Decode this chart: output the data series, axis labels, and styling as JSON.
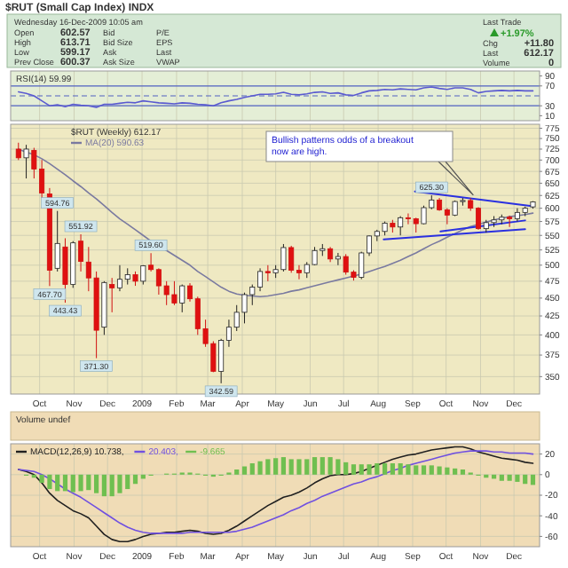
{
  "chart_data": [
    {
      "type": "other",
      "title": "$RUT (Small Cap Index) INDX",
      "annotations": [
        "Wednesday 16-Dec-2009 10:05 am",
        "Open",
        "602.57",
        "High",
        "613.71",
        "Low",
        "599.17",
        "Prev Close",
        "600.37",
        "Bid",
        "Bid Size",
        "Ask",
        "Ask Size",
        "P/E",
        "EPS",
        "Last",
        "VWAP",
        "Last Trade",
        "+1.97%",
        "Chg",
        "+11.80",
        "Last",
        "612.17",
        "Volume",
        "0"
      ]
    },
    {
      "type": "line",
      "title": "RSI(14) 59.99",
      "xlim": [
        "2008-09-05",
        "2009-12-24"
      ],
      "ylim": [
        0,
        100
      ],
      "yticks": [
        10,
        30,
        70,
        90
      ],
      "tick_labels": "y",
      "grid": "x",
      "xticks": [
        {
          "value": "2008-10-01",
          "label": null
        },
        {
          "value": "2008-11-01",
          "label": null
        },
        {
          "value": "2008-12-01",
          "label": null
        },
        {
          "value": "2009-01-01",
          "label": null
        },
        {
          "value": "2009-02-01",
          "label": null
        },
        {
          "value": "2009-03-01",
          "label": null
        },
        {
          "value": "2009-04-01",
          "label": null
        },
        {
          "value": "2009-05-01",
          "label": null
        },
        {
          "value": "2009-06-01",
          "label": null
        },
        {
          "value": "2009-07-01",
          "label": null
        },
        {
          "value": "2009-08-01",
          "label": null
        },
        {
          "value": "2009-09-01",
          "label": null
        },
        {
          "value": "2009-10-01",
          "label": null
        },
        {
          "value": "2009-11-01",
          "label": null
        },
        {
          "value": "2009-12-01",
          "label": null
        }
      ],
      "ref_lines": [
        {
          "axis": "y",
          "value": 70,
          "color": "#5060c0"
        },
        {
          "axis": "y",
          "value": 30,
          "color": "#5060c0"
        },
        {
          "axis": "y",
          "value": 50,
          "color": "#5060c0",
          "line_style": "dashed"
        }
      ],
      "x": [
        "2008-09-12",
        "2008-09-19",
        "2008-09-26",
        "2008-10-03",
        "2008-10-10",
        "2008-10-17",
        "2008-10-24",
        "2008-10-31",
        "2008-11-07",
        "2008-11-14",
        "2008-11-21",
        "2008-11-28",
        "2008-12-05",
        "2008-12-12",
        "2008-12-19",
        "2008-12-26",
        "2009-01-02",
        "2009-01-09",
        "2009-01-16",
        "2009-01-23",
        "2009-01-30",
        "2009-02-06",
        "2009-02-13",
        "2009-02-20",
        "2009-02-27",
        "2009-03-06",
        "2009-03-13",
        "2009-03-20",
        "2009-03-27",
        "2009-04-03",
        "2009-04-10",
        "2009-04-17",
        "2009-04-24",
        "2009-05-01",
        "2009-05-08",
        "2009-05-15",
        "2009-05-22",
        "2009-05-29",
        "2009-06-05",
        "2009-06-12",
        "2009-06-19",
        "2009-06-26",
        "2009-07-03",
        "2009-07-10",
        "2009-07-17",
        "2009-07-24",
        "2009-07-31",
        "2009-08-07",
        "2009-08-14",
        "2009-08-21",
        "2009-08-28",
        "2009-09-04",
        "2009-09-11",
        "2009-09-18",
        "2009-09-25",
        "2009-10-02",
        "2009-10-09",
        "2009-10-16",
        "2009-10-23",
        "2009-10-30",
        "2009-11-06",
        "2009-11-13",
        "2009-11-20",
        "2009-11-27",
        "2009-12-04",
        "2009-12-11",
        "2009-12-18"
      ],
      "series": [
        {
          "color": "#5a5ad0",
          "values": [
            58,
            55,
            50,
            40,
            30,
            32,
            28,
            33,
            31,
            30,
            27,
            33,
            33,
            35,
            37,
            36,
            40,
            38,
            36,
            35,
            34,
            36,
            35,
            33,
            32,
            30,
            36,
            40,
            43,
            47,
            50,
            53,
            53,
            54,
            57,
            53,
            52,
            54,
            57,
            58,
            55,
            56,
            52,
            51,
            56,
            60,
            61,
            63,
            62,
            64,
            63,
            62,
            66,
            68,
            65,
            63,
            66,
            66,
            63,
            56,
            59,
            60,
            61,
            60,
            61,
            60,
            60
          ]
        }
      ]
    },
    {
      "type": "candlestick",
      "title": "$RUT (Weekly) 612.17",
      "log": true,
      "grid": true,
      "legend": "top left",
      "xlim": [
        "2008-09-05",
        "2009-12-24"
      ],
      "ylim": [
        331,
        785
      ],
      "yticks": [
        350,
        375,
        400,
        425,
        450,
        475,
        500,
        525,
        550,
        575,
        600,
        625,
        650,
        675,
        700,
        725,
        750,
        775
      ],
      "xticks": [
        {
          "value": "2008-10-01",
          "label": "Oct"
        },
        {
          "value": "2008-11-01",
          "label": "Nov"
        },
        {
          "value": "2008-12-01",
          "label": "Dec"
        },
        {
          "value": "2009-01-01",
          "label": "2009"
        },
        {
          "value": "2009-02-01",
          "label": "Feb"
        },
        {
          "value": "2009-03-01",
          "label": "Mar"
        },
        {
          "value": "2009-04-01",
          "label": "Apr"
        },
        {
          "value": "2009-05-01",
          "label": "May"
        },
        {
          "value": "2009-06-01",
          "label": "Jun"
        },
        {
          "value": "2009-07-01",
          "label": "Jul"
        },
        {
          "value": "2009-08-01",
          "label": "Aug"
        },
        {
          "value": "2009-09-01",
          "label": "Sep"
        },
        {
          "value": "2009-10-01",
          "label": "Oct"
        },
        {
          "value": "2009-11-01",
          "label": "Nov"
        },
        {
          "value": "2009-12-01",
          "label": "Dec"
        }
      ],
      "x": [
        "2008-09-12",
        "2008-09-19",
        "2008-09-26",
        "2008-10-03",
        "2008-10-10",
        "2008-10-17",
        "2008-10-24",
        "2008-10-31",
        "2008-11-07",
        "2008-11-14",
        "2008-11-21",
        "2008-11-28",
        "2008-12-05",
        "2008-12-12",
        "2008-12-19",
        "2008-12-26",
        "2009-01-02",
        "2009-01-09",
        "2009-01-16",
        "2009-01-23",
        "2009-01-30",
        "2009-02-06",
        "2009-02-13",
        "2009-02-20",
        "2009-02-27",
        "2009-03-06",
        "2009-03-13",
        "2009-03-20",
        "2009-03-27",
        "2009-04-03",
        "2009-04-10",
        "2009-04-17",
        "2009-04-24",
        "2009-05-01",
        "2009-05-08",
        "2009-05-15",
        "2009-05-22",
        "2009-05-29",
        "2009-06-05",
        "2009-06-12",
        "2009-06-19",
        "2009-06-26",
        "2009-07-03",
        "2009-07-10",
        "2009-07-17",
        "2009-07-24",
        "2009-07-31",
        "2009-08-07",
        "2009-08-14",
        "2009-08-21",
        "2009-08-28",
        "2009-09-04",
        "2009-09-11",
        "2009-09-18",
        "2009-09-25",
        "2009-10-02",
        "2009-10-09",
        "2009-10-16",
        "2009-10-23",
        "2009-10-30",
        "2009-11-06",
        "2009-11-13",
        "2009-11-20",
        "2009-11-27",
        "2009-12-04",
        "2009-12-11",
        "2009-12-18"
      ],
      "ohlc": [
        [
          725,
          740,
          700,
          705
        ],
        [
          705,
          735,
          660,
          725
        ],
        [
          722,
          728,
          660,
          680
        ],
        [
          680,
          700,
          620,
          630
        ],
        [
          628,
          640,
          467.7,
          492
        ],
        [
          495,
          594.76,
          490,
          536
        ],
        [
          530,
          545,
          443.43,
          470
        ],
        [
          470,
          540,
          465,
          537
        ],
        [
          540,
          551.92,
          490,
          506
        ],
        [
          505,
          530,
          460,
          480
        ],
        [
          480,
          490,
          371.3,
          406
        ],
        [
          410,
          475,
          400,
          473
        ],
        [
          470,
          480,
          430,
          465
        ],
        [
          465,
          500,
          460,
          478
        ],
        [
          478,
          495,
          470,
          485
        ],
        [
          485,
          490,
          468,
          475
        ],
        [
          475,
          500,
          470,
          499
        ],
        [
          500,
          519.6,
          490,
          493
        ],
        [
          493,
          495,
          455,
          468
        ],
        [
          468,
          475,
          440,
          455
        ],
        [
          455,
          475,
          440,
          443
        ],
        [
          443,
          470,
          430,
          468
        ],
        [
          468,
          472,
          445,
          449
        ],
        [
          449,
          452,
          400,
          408
        ],
        [
          408,
          420,
          385,
          389
        ],
        [
          389,
          392,
          355,
          356
        ],
        [
          356,
          395,
          342.59,
          393
        ],
        [
          393,
          420,
          385,
          410
        ],
        [
          410,
          440,
          405,
          430
        ],
        [
          430,
          458,
          415,
          455
        ],
        [
          455,
          470,
          440,
          466
        ],
        [
          466,
          495,
          460,
          490
        ],
        [
          490,
          500,
          475,
          488
        ],
        [
          488,
          500,
          480,
          493
        ],
        [
          493,
          535,
          490,
          529
        ],
        [
          529,
          532,
          488,
          492
        ],
        [
          492,
          500,
          478,
          488
        ],
        [
          488,
          505,
          480,
          501
        ],
        [
          501,
          530,
          500,
          524
        ],
        [
          524,
          535,
          515,
          527
        ],
        [
          527,
          530,
          505,
          510
        ],
        [
          510,
          520,
          500,
          514
        ],
        [
          514,
          518,
          485,
          489
        ],
        [
          489,
          492,
          476,
          481
        ],
        [
          481,
          522,
          478,
          520
        ],
        [
          520,
          550,
          515,
          549
        ],
        [
          549,
          560,
          540,
          557
        ],
        [
          557,
          575,
          550,
          572
        ],
        [
          572,
          578,
          555,
          565
        ],
        [
          565,
          585,
          550,
          582
        ],
        [
          582,
          590,
          570,
          580
        ],
        [
          580,
          582,
          555,
          571
        ],
        [
          571,
          605,
          570,
          601
        ],
        [
          601,
          625.3,
          598,
          616
        ],
        [
          616,
          620,
          595,
          597
        ],
        [
          597,
          600,
          570,
          587
        ],
        [
          587,
          615,
          585,
          613
        ],
        [
          613,
          620,
          605,
          615
        ],
        [
          615,
          620,
          595,
          600
        ],
        [
          600,
          602,
          560,
          562
        ],
        [
          562,
          578,
          555,
          573
        ],
        [
          573,
          585,
          565,
          578
        ],
        [
          578,
          588,
          570,
          583
        ],
        [
          583,
          586,
          565,
          580
        ],
        [
          580,
          600,
          575,
          592
        ],
        [
          592,
          603,
          585,
          600
        ],
        [
          602.57,
          613.71,
          599.17,
          612.17
        ]
      ],
      "series": [
        {
          "type": "line",
          "name": "MA(20) 590.63",
          "color": "#7a7aa0",
          "values": [
            725,
            718,
            712,
            703,
            692,
            680,
            668,
            655,
            643,
            630,
            618,
            605,
            592,
            580,
            570,
            560,
            550,
            540,
            532,
            524,
            516,
            508,
            500,
            490,
            482,
            474,
            466,
            460,
            456,
            454,
            453,
            452,
            453,
            455,
            457,
            460,
            462,
            465,
            468,
            471,
            474,
            477,
            480,
            483,
            486,
            490,
            494,
            498,
            503,
            508,
            514,
            520,
            527,
            534,
            540,
            547,
            553,
            560,
            566,
            570,
            574,
            578,
            581,
            584,
            586,
            588,
            590.63
          ]
        },
        {
          "type": "line",
          "color": "#2a30e0",
          "x": [
            "2009-09-03",
            "2009-12-17"
          ],
          "values": [
            633,
            604
          ]
        },
        {
          "type": "line",
          "color": "#2a30e0",
          "x": [
            "2009-09-26",
            "2009-12-11"
          ],
          "values": [
            557,
            577
          ]
        },
        {
          "type": "line",
          "color": "#2a30e0",
          "x": [
            "2009-08-06",
            "2009-12-11"
          ],
          "values": [
            543,
            561
          ]
        }
      ],
      "annotations": [
        {
          "text": "594.76",
          "x": "2008-10-17",
          "y": 594.76
        },
        {
          "text": "467.70",
          "x": "2008-10-10",
          "y": 467.7
        },
        {
          "text": "551.92",
          "x": "2008-11-07",
          "y": 551.92
        },
        {
          "text": "443.43",
          "x": "2008-10-24",
          "y": 443.43
        },
        {
          "text": "371.30",
          "x": "2008-11-21",
          "y": 371.3
        },
        {
          "text": "519.60",
          "x": "2009-01-09",
          "y": 519.6
        },
        {
          "text": "342.59",
          "x": "2009-03-13",
          "y": 342.59
        },
        {
          "text": "625.30",
          "x": "2009-09-18",
          "y": 625.3
        },
        "Bullish patterns odds of a breakout now are high."
      ]
    },
    {
      "type": "line",
      "grid": true,
      "legend": "top left",
      "xlim": [
        "2008-09-05",
        "2009-12-24"
      ],
      "ylim": [
        -70,
        30
      ],
      "yticks": [
        20,
        0,
        -20,
        -40,
        -60
      ],
      "xticks": [
        {
          "value": "2008-10-01",
          "label": "Oct"
        },
        {
          "value": "2008-11-01",
          "label": "Nov"
        },
        {
          "value": "2008-12-01",
          "label": "Dec"
        },
        {
          "value": "2009-01-01",
          "label": "2009"
        },
        {
          "value": "2009-02-01",
          "label": "Feb"
        },
        {
          "value": "2009-03-01",
          "label": "Mar"
        },
        {
          "value": "2009-04-01",
          "label": "Apr"
        },
        {
          "value": "2009-05-01",
          "label": "May"
        },
        {
          "value": "2009-06-01",
          "label": "Jun"
        },
        {
          "value": "2009-07-01",
          "label": "Jul"
        },
        {
          "value": "2009-08-01",
          "label": "Aug"
        },
        {
          "value": "2009-09-01",
          "label": "Sep"
        },
        {
          "value": "2009-10-01",
          "label": "Oct"
        },
        {
          "value": "2009-11-01",
          "label": "Nov"
        },
        {
          "value": "2009-12-01",
          "label": "Dec"
        }
      ],
      "annotations": [
        "Volume undef"
      ],
      "x": [
        "2008-09-12",
        "2008-09-19",
        "2008-09-26",
        "2008-10-03",
        "2008-10-10",
        "2008-10-17",
        "2008-10-24",
        "2008-10-31",
        "2008-11-07",
        "2008-11-14",
        "2008-11-21",
        "2008-11-28",
        "2008-12-05",
        "2008-12-12",
        "2008-12-19",
        "2008-12-26",
        "2009-01-02",
        "2009-01-09",
        "2009-01-16",
        "2009-01-23",
        "2009-01-30",
        "2009-02-06",
        "2009-02-13",
        "2009-02-20",
        "2009-02-27",
        "2009-03-06",
        "2009-03-13",
        "2009-03-20",
        "2009-03-27",
        "2009-04-03",
        "2009-04-10",
        "2009-04-17",
        "2009-04-24",
        "2009-05-01",
        "2009-05-08",
        "2009-05-15",
        "2009-05-22",
        "2009-05-29",
        "2009-06-05",
        "2009-06-12",
        "2009-06-19",
        "2009-06-26",
        "2009-07-03",
        "2009-07-10",
        "2009-07-17",
        "2009-07-24",
        "2009-07-31",
        "2009-08-07",
        "2009-08-14",
        "2009-08-21",
        "2009-08-28",
        "2009-09-04",
        "2009-09-11",
        "2009-09-18",
        "2009-09-25",
        "2009-10-02",
        "2009-10-09",
        "2009-10-16",
        "2009-10-23",
        "2009-10-30",
        "2009-11-06",
        "2009-11-13",
        "2009-11-20",
        "2009-11-27",
        "2009-12-04",
        "2009-12-11",
        "2009-12-18"
      ],
      "series": [
        {
          "type": "line",
          "name": "MACD(12,26,9) 10.738,",
          "color": "#202020",
          "values": [
            5,
            3,
            0,
            -8,
            -18,
            -25,
            -30,
            -35,
            -38,
            -42,
            -50,
            -58,
            -63,
            -65,
            -65,
            -63,
            -60,
            -58,
            -57,
            -56,
            -56,
            -55,
            -54,
            -55,
            -57,
            -58,
            -57,
            -54,
            -50,
            -45,
            -40,
            -35,
            -30,
            -26,
            -22,
            -20,
            -17,
            -13,
            -8,
            -4,
            -1,
            0,
            0,
            1,
            3,
            6,
            9,
            12,
            15,
            17,
            19,
            20,
            22,
            24,
            25,
            26,
            27,
            27,
            25,
            22,
            20,
            18,
            16,
            15,
            14,
            12,
            11
          ]
        },
        {
          "type": "line",
          "name": "20.403,",
          "color": "#7050e0",
          "values": [
            5,
            4,
            3,
            0,
            -4,
            -9,
            -14,
            -18,
            -22,
            -27,
            -32,
            -37,
            -42,
            -47,
            -51,
            -54,
            -56,
            -57,
            -57,
            -57,
            -57,
            -57,
            -56,
            -56,
            -56,
            -56,
            -56,
            -56,
            -55,
            -53,
            -51,
            -48,
            -45,
            -42,
            -39,
            -35,
            -32,
            -28,
            -25,
            -21,
            -18,
            -15,
            -12,
            -9,
            -7,
            -4,
            -2,
            1,
            4,
            6,
            9,
            11,
            13,
            15,
            17,
            19,
            21,
            22,
            23,
            23,
            23,
            22,
            22,
            21,
            21,
            21,
            20
          ]
        },
        {
          "type": "bar",
          "name": "-9.665",
          "color": "#6fbf50",
          "values": [
            0,
            -1,
            -3,
            -8,
            -14,
            -16,
            -16,
            -17,
            -16,
            -15,
            -18,
            -21,
            -21,
            -18,
            -14,
            -9,
            -4,
            -1,
            0,
            1,
            1,
            2,
            2,
            1,
            -1,
            -2,
            -1,
            2,
            5,
            8,
            11,
            13,
            15,
            16,
            17,
            15,
            15,
            15,
            17,
            17,
            17,
            15,
            12,
            10,
            10,
            10,
            11,
            11,
            11,
            11,
            10,
            9,
            9,
            9,
            8,
            7,
            6,
            5,
            2,
            -1,
            -3,
            -4,
            -6,
            -6,
            -7,
            -9,
            -10
          ]
        }
      ]
    }
  ]
}
